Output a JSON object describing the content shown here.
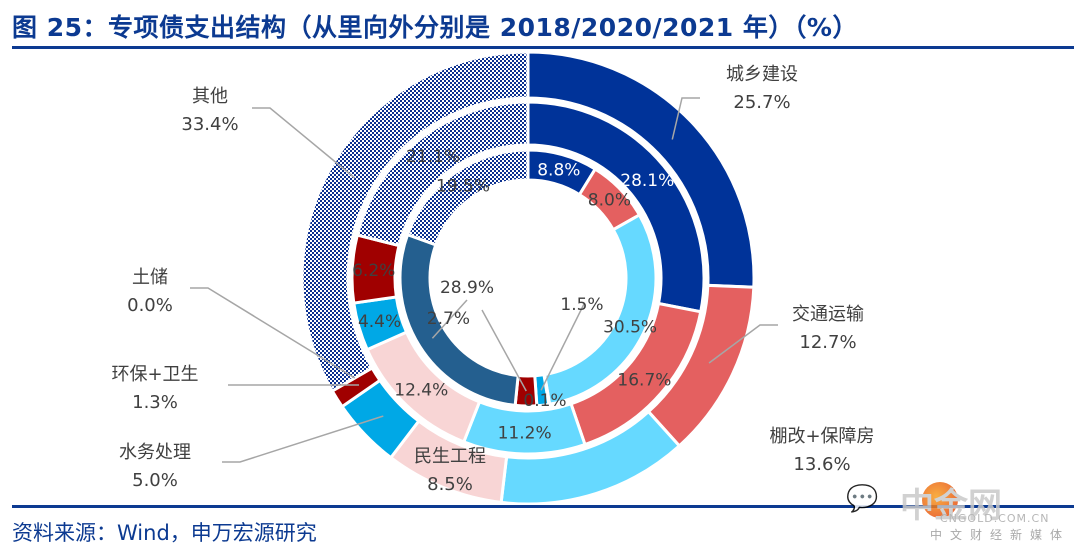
{
  "title": "图 25：专项债支出结构（从里向外分别是 2018/2020/2021 年）（%）",
  "source": "资料来源：Wind，申万宏源研究",
  "watermark": {
    "brand": "中金网",
    "domain": "CNGOLD.COM.CN",
    "tagline": "中文财经新媒体"
  },
  "chart_data": {
    "type": "pie",
    "subtype": "multi-ring donut",
    "title": "专项债支出结构（从里向外分别是 2018/2020/2021 年）（%）",
    "unit": "%",
    "categories": [
      "城乡建设",
      "交通运输",
      "棚改+保障房",
      "民生工程",
      "水务处理",
      "环保+卫生",
      "土储",
      "其他"
    ],
    "colors": [
      "#003399",
      "#e46060",
      "#66d9ff",
      "#f8d5d5",
      "#00a8e6",
      "#a00000",
      "#245f8f",
      "#0a2f8f"
    ],
    "series": [
      {
        "name": "2018",
        "ring": "inner",
        "values": [
          8.8,
          8.0,
          30.5,
          0.1,
          1.5,
          2.7,
          28.9,
          19.5
        ]
      },
      {
        "name": "2020",
        "ring": "middle",
        "values": [
          28.1,
          16.7,
          11.2,
          12.4,
          4.4,
          6.2,
          0.0,
          21.1
        ]
      },
      {
        "name": "2021",
        "ring": "outer",
        "values": [
          25.7,
          12.7,
          13.6,
          8.5,
          5.0,
          1.3,
          0.0,
          33.4
        ]
      }
    ],
    "outer_labels": [
      {
        "name": "城乡建设",
        "value": "25.7%"
      },
      {
        "name": "交通运输",
        "value": "12.7%"
      },
      {
        "name": "棚改+保障房",
        "value": "13.6%"
      },
      {
        "name": "民生工程",
        "value": "8.5%"
      },
      {
        "name": "水务处理",
        "value": "5.0%"
      },
      {
        "name": "环保+卫生",
        "value": "1.3%"
      },
      {
        "name": "土储",
        "value": "0.0%"
      },
      {
        "name": "其他",
        "value": "33.4%"
      }
    ],
    "legend": "none",
    "pattern_category": "其他"
  }
}
